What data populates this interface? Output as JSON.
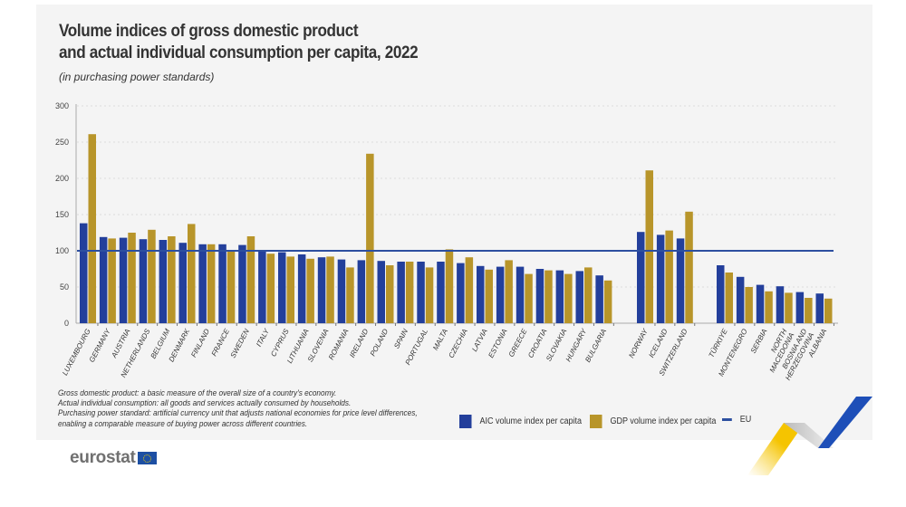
{
  "title_line1": "Volume indices of gross domestic product",
  "title_line2": "and actual individual consumption per capita, 2022",
  "subtitle": "(in purchasing power standards)",
  "notes": [
    "Gross domestic product: a basic measure of the overall size of a country's economy.",
    "Actual individual consumption: all goods and services actually consumed by households.",
    "Purchasing power standard: artificial currency unit that adjusts national economies for price level differences,",
    "enabling a comparable measure of buying power across different countries."
  ],
  "legend": {
    "aic": "AIC volume index per capita",
    "gdp": "GDP volume index per capita",
    "eu": "EU"
  },
  "logo": "eurostat",
  "colors": {
    "aic": "#233f9b",
    "gdp": "#b8952a",
    "eu": "#2d4fa0"
  },
  "chart_data": {
    "type": "bar",
    "ylim": [
      0,
      300
    ],
    "yticks": [
      0,
      50,
      100,
      150,
      200,
      250,
      300
    ],
    "grid": true,
    "reference_line": {
      "name": "EU",
      "value": 100
    },
    "groups": [
      {
        "categories": [
          "LUXEMBOURG",
          "GERMANY",
          "AUSTRIA",
          "NETHERLANDS",
          "BELGIUM",
          "DENMARK",
          "FINLAND",
          "FRANCE",
          "SWEDEN",
          "ITALY",
          "CYPRUS",
          "LITHUANIA",
          "SLOVENIA",
          "ROMANIA",
          "IRELAND",
          "POLAND",
          "SPAIN",
          "PORTUGAL",
          "MALTA",
          "CZECHIA",
          "LATVIA",
          "ESTONIA",
          "GREECE",
          "CROATIA",
          "SLOVAKIA",
          "HUNGARY",
          "BULGARIA"
        ],
        "aic": [
          138,
          119,
          118,
          116,
          115,
          111,
          109,
          109,
          108,
          101,
          98,
          95,
          91,
          88,
          87,
          86,
          85,
          85,
          85,
          83,
          79,
          78,
          78,
          75,
          73,
          72,
          66
        ],
        "gdp": [
          261,
          117,
          125,
          129,
          120,
          137,
          109,
          100,
          120,
          96,
          92,
          89,
          92,
          77,
          234,
          80,
          85,
          77,
          102,
          91,
          74,
          87,
          68,
          73,
          68,
          77,
          59
        ]
      },
      {
        "categories": [
          "NORWAY",
          "ICELAND",
          "SWITZERLAND"
        ],
        "aic": [
          126,
          122,
          117
        ],
        "gdp": [
          211,
          128,
          154
        ]
      },
      {
        "categories": [
          "TÜRKIYE",
          "MONTENEGRO",
          "SERBIA",
          "NORTH\nMACEDONIA",
          "BOSNIA AND\nHERZEGOVINA",
          "ALBANIA"
        ],
        "aic": [
          80,
          64,
          53,
          51,
          43,
          41
        ],
        "gdp": [
          70,
          50,
          44,
          42,
          35,
          34
        ]
      }
    ],
    "series": [
      {
        "name": "AIC volume index per capita"
      },
      {
        "name": "GDP volume index per capita"
      }
    ]
  }
}
